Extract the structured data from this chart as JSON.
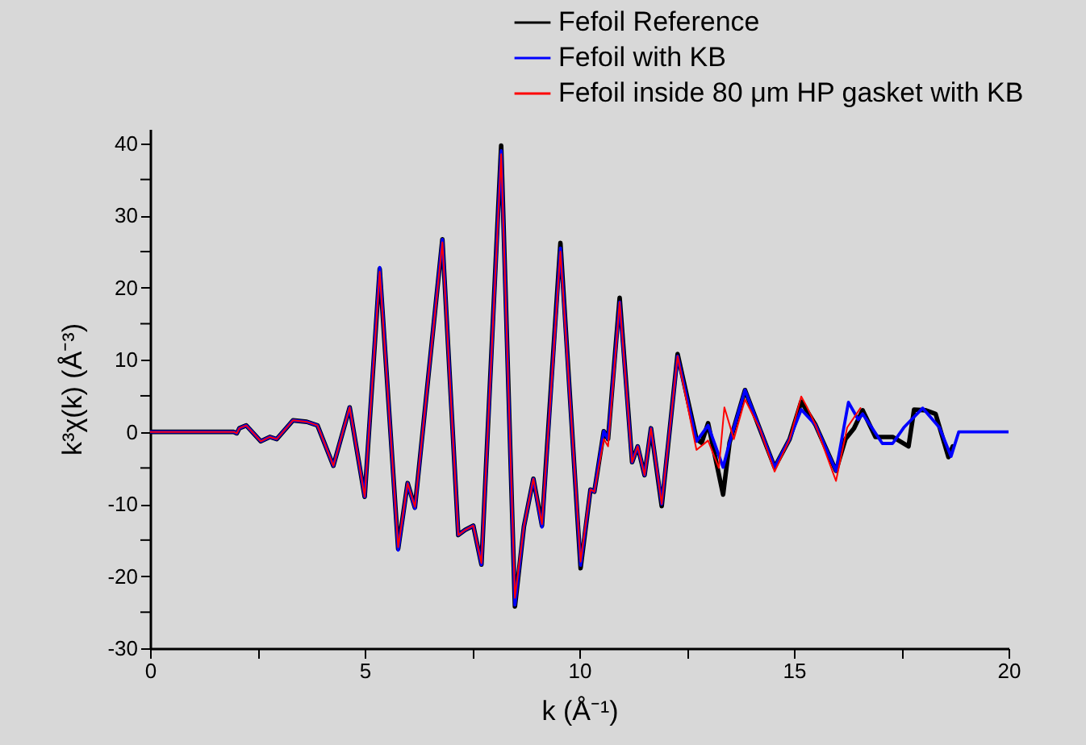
{
  "chart_data": {
    "type": "line",
    "xlabel": "k (Å⁻¹)",
    "ylabel": "k³χ(k) (Å⁻³)",
    "xlim": [
      0,
      20
    ],
    "ylim": [
      -30,
      42
    ],
    "xticks": [
      0,
      {
        "value": 2.5,
        "label": null
      },
      5,
      {
        "value": 7.5,
        "label": null
      },
      10,
      {
        "value": 12.5,
        "label": null
      },
      15,
      {
        "value": 17.5,
        "label": null
      },
      20
    ],
    "yticks": [
      -30,
      {
        "value": -25,
        "label": null
      },
      -20,
      {
        "value": -15,
        "label": null
      },
      -10,
      {
        "value": -5,
        "label": null
      },
      0,
      {
        "value": 5,
        "label": null
      },
      10,
      {
        "value": 15,
        "label": null
      },
      20,
      {
        "value": 25,
        "label": null
      },
      30,
      {
        "value": 35,
        "label": null
      },
      40
    ],
    "legend": "top right",
    "marker": "none",
    "line_style": "solid",
    "series": [
      {
        "name": "Fefoil Reference",
        "color": "#000000",
        "x": [
          0,
          1.95,
          2.02,
          2.08,
          2.24,
          2.58,
          2.79,
          2.95,
          3.33,
          3.65,
          3.9,
          4.27,
          4.65,
          5.0,
          5.35,
          5.78,
          6.0,
          6.17,
          6.81,
          7.18,
          7.34,
          7.53,
          7.72,
          8.18,
          8.5,
          8.71,
          8.93,
          9.13,
          9.56,
          10.03,
          10.26,
          10.35,
          10.57,
          10.67,
          10.94,
          11.23,
          11.36,
          11.52,
          11.67,
          11.92,
          12.29,
          12.73,
          12.85,
          13.0,
          13.35,
          13.5,
          13.86,
          14.2,
          14.55,
          14.9,
          15.17,
          15.5,
          15.98,
          16.2,
          16.4,
          16.6,
          16.9,
          17.3,
          17.67,
          17.8,
          18.07,
          18.3,
          18.6,
          18.7
        ],
        "values": [
          0,
          0,
          -0.2,
          0.5,
          0.9,
          -1.3,
          -0.7,
          -1.0,
          1.6,
          1.4,
          0.9,
          -4.7,
          3.4,
          -9.0,
          22.6,
          -16.2,
          -7.1,
          -10.5,
          26.7,
          -14.3,
          -13.6,
          -13.0,
          -18.4,
          39.7,
          -24.2,
          -13.1,
          -6.5,
          -13.0,
          26.2,
          -18.9,
          -8,
          -8.3,
          0.1,
          -1,
          18.6,
          -4.2,
          -2,
          -6.0,
          0.5,
          -10.3,
          10.8,
          -1.0,
          -1.5,
          1.2,
          -8.7,
          -1.5,
          5.8,
          0.5,
          -4.9,
          -1,
          4.2,
          1,
          -5.4,
          -1,
          0.5,
          3,
          -0.7,
          -0.7,
          -2,
          3.1,
          3,
          2.5,
          -3.5,
          -2
        ]
      },
      {
        "name": "Fefoil with KB",
        "color": "#0000ff",
        "x": [
          0,
          1.95,
          2.02,
          2.08,
          2.24,
          2.58,
          2.79,
          2.95,
          3.33,
          3.65,
          3.9,
          4.27,
          4.65,
          5.0,
          5.35,
          5.78,
          6.0,
          6.17,
          6.81,
          7.18,
          7.34,
          7.53,
          7.72,
          8.18,
          8.5,
          8.71,
          8.93,
          9.13,
          9.56,
          10.03,
          10.26,
          10.35,
          10.57,
          10.67,
          10.94,
          11.23,
          11.36,
          11.52,
          11.67,
          11.92,
          12.29,
          12.73,
          13.0,
          13.35,
          13.5,
          13.86,
          14.2,
          14.55,
          14.9,
          15.17,
          15.5,
          15.98,
          16.27,
          16.5,
          16.6,
          17.06,
          17.3,
          17.56,
          18.0,
          18.39,
          18.66,
          18.84,
          20
        ],
        "values": [
          0,
          0,
          -0.2,
          0.5,
          0.9,
          -1.3,
          -0.7,
          -1.0,
          1.6,
          1.4,
          0.9,
          -4.7,
          3.4,
          -9.0,
          22.8,
          -16.4,
          -7.1,
          -10.6,
          26.7,
          -14.3,
          -13.6,
          -13.0,
          -18.4,
          39.0,
          -24.0,
          -13.1,
          -6.5,
          -13.2,
          25.5,
          -18.5,
          -8,
          -8.3,
          0.1,
          -1,
          18.0,
          -4.2,
          -2,
          -6.0,
          0.5,
          -10.0,
          10.5,
          -1.3,
          0.9,
          -4.9,
          -1.5,
          5.8,
          0.5,
          -4.9,
          -1,
          3.1,
          1,
          -5.4,
          4.1,
          1.7,
          2.5,
          -1.6,
          -1.6,
          0.6,
          3.3,
          0.6,
          -3.4,
          0,
          0
        ]
      },
      {
        "name": "Fefoil inside 80 μm HP gasket with KB",
        "color": "#ff0000",
        "x": [
          0,
          1.95,
          2.02,
          2.08,
          2.24,
          2.58,
          2.79,
          2.95,
          3.33,
          3.65,
          3.9,
          4.27,
          4.65,
          5.0,
          5.35,
          5.78,
          6.0,
          6.17,
          6.81,
          7.18,
          7.34,
          7.53,
          7.72,
          8.18,
          8.5,
          8.71,
          8.93,
          9.13,
          9.56,
          10.03,
          10.26,
          10.35,
          10.57,
          10.67,
          10.94,
          11.23,
          11.36,
          11.52,
          11.67,
          11.92,
          12.29,
          12.73,
          13.0,
          13.25,
          13.38,
          13.6,
          13.86,
          14.2,
          14.55,
          14.9,
          15.17,
          15.3,
          15.5,
          15.98,
          16.24,
          16.55
        ],
        "values": [
          0,
          0,
          -0.2,
          0.5,
          0.9,
          -1.3,
          -0.7,
          -1.0,
          1.6,
          1.4,
          0.9,
          -4.7,
          3.4,
          -9.0,
          22.2,
          -16.0,
          -7.1,
          -10.4,
          26.3,
          -14.3,
          -13.6,
          -13.0,
          -18.2,
          38.5,
          -23.0,
          -13.1,
          -6.5,
          -12.8,
          25.0,
          -18.0,
          -8,
          -8.3,
          -1,
          -2,
          18.0,
          -4.2,
          -2,
          -6.0,
          0.5,
          -10.0,
          10.5,
          -2.5,
          -1.2,
          -5,
          3.4,
          -1,
          4.5,
          0.5,
          -5.5,
          -1,
          4.9,
          3.5,
          1,
          -6.8,
          0.6,
          3.3
        ]
      }
    ]
  }
}
